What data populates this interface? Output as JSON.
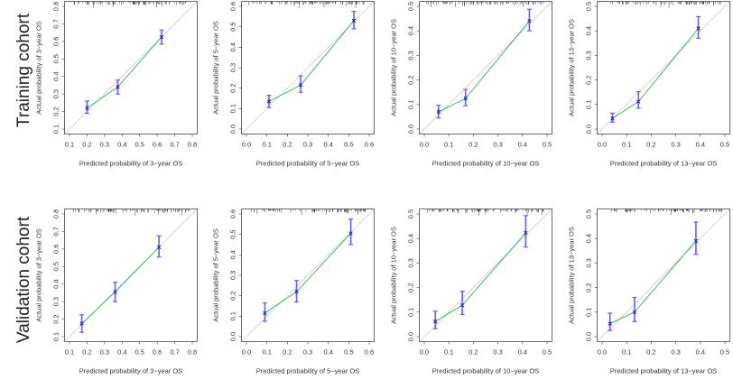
{
  "colors": {
    "points": "#2222cc",
    "errorbar": "#6a5cff",
    "calibration": "#3cb04a",
    "ideal": "#cccccc",
    "axis": "#444444"
  },
  "chart_data": {
    "type": "scatter",
    "rows": [
      "Training cohort",
      "Validation cohort"
    ],
    "panels": [
      {
        "row": 0,
        "title": "",
        "xlabel": "Predicted probability of 3−year OS",
        "ylabel": "Actual probability of 3−year OS",
        "xlim": [
          0.1,
          0.8
        ],
        "ylim": [
          0.1,
          0.8
        ],
        "ticks": [
          "0.1",
          "0.2",
          "0.3",
          "0.4",
          "0.5",
          "0.6",
          "0.7",
          "0.8"
        ],
        "points": [
          {
            "x": 0.2,
            "y": 0.22,
            "lo": 0.19,
            "hi": 0.26
          },
          {
            "x": 0.375,
            "y": 0.34,
            "lo": 0.3,
            "hi": 0.38
          },
          {
            "x": 0.625,
            "y": 0.625,
            "lo": 0.585,
            "hi": 0.665
          }
        ]
      },
      {
        "row": 0,
        "title": "",
        "xlabel": "Predicted probability of 5−year OS",
        "ylabel": "Actual probability of 5−year OS",
        "xlim": [
          0.0,
          0.6
        ],
        "ylim": [
          0.0,
          0.6
        ],
        "ticks": [
          "0.0",
          "0.1",
          "0.2",
          "0.3",
          "0.4",
          "0.5",
          "0.6"
        ],
        "points": [
          {
            "x": 0.11,
            "y": 0.135,
            "lo": 0.105,
            "hi": 0.165
          },
          {
            "x": 0.265,
            "y": 0.215,
            "lo": 0.18,
            "hi": 0.26
          },
          {
            "x": 0.525,
            "y": 0.53,
            "lo": 0.49,
            "hi": 0.575
          }
        ]
      },
      {
        "row": 0,
        "title": "",
        "xlabel": "Predicted probability of 10−year OS",
        "ylabel": "Actual probability of 10−year OS",
        "xlim": [
          0.0,
          0.5
        ],
        "ylim": [
          0.0,
          0.5
        ],
        "ticks": [
          "0.0",
          "0.1",
          "0.2",
          "0.3",
          "0.4",
          "0.5"
        ],
        "points": [
          {
            "x": 0.058,
            "y": 0.07,
            "lo": 0.045,
            "hi": 0.097
          },
          {
            "x": 0.168,
            "y": 0.125,
            "lo": 0.095,
            "hi": 0.162
          },
          {
            "x": 0.428,
            "y": 0.44,
            "lo": 0.4,
            "hi": 0.488
          }
        ]
      },
      {
        "row": 0,
        "title": "",
        "xlabel": "Predicted probability of 13−year OS",
        "ylabel": "Actual probability of 13−year OS",
        "xlim": [
          0.0,
          0.5
        ],
        "ylim": [
          0.0,
          0.5
        ],
        "ticks": [
          "0.0",
          "0.1",
          "0.2",
          "0.3",
          "0.4",
          "0.5"
        ],
        "points": [
          {
            "x": 0.042,
            "y": 0.043,
            "lo": 0.028,
            "hi": 0.065
          },
          {
            "x": 0.148,
            "y": 0.112,
            "lo": 0.085,
            "hi": 0.152
          },
          {
            "x": 0.392,
            "y": 0.41,
            "lo": 0.37,
            "hi": 0.458
          }
        ]
      },
      {
        "row": 1,
        "title": "",
        "xlabel": "Predicted probability of 3−year OS",
        "ylabel": "Actual probability of 3−year OS",
        "xlim": [
          0.1,
          0.8
        ],
        "ylim": [
          0.1,
          0.8
        ],
        "ticks": [
          "0.1",
          "0.2",
          "0.3",
          "0.4",
          "0.5",
          "0.6",
          "0.7",
          "0.8"
        ],
        "points": [
          {
            "x": 0.17,
            "y": 0.175,
            "lo": 0.125,
            "hi": 0.225
          },
          {
            "x": 0.36,
            "y": 0.355,
            "lo": 0.3,
            "hi": 0.41
          },
          {
            "x": 0.61,
            "y": 0.61,
            "lo": 0.555,
            "hi": 0.675
          }
        ]
      },
      {
        "row": 1,
        "title": "",
        "xlabel": "Predicted probability of 5−year OS",
        "ylabel": "Actual probability of 5−year OS",
        "xlim": [
          0.0,
          0.6
        ],
        "ylim": [
          0.0,
          0.6
        ],
        "ticks": [
          "0.0",
          "0.1",
          "0.2",
          "0.3",
          "0.4",
          "0.5",
          "0.6"
        ],
        "points": [
          {
            "x": 0.09,
            "y": 0.115,
            "lo": 0.075,
            "hi": 0.165
          },
          {
            "x": 0.245,
            "y": 0.22,
            "lo": 0.17,
            "hi": 0.275
          },
          {
            "x": 0.51,
            "y": 0.505,
            "lo": 0.45,
            "hi": 0.575
          }
        ]
      },
      {
        "row": 1,
        "title": "",
        "xlabel": "Predicted probability of 10−year OS",
        "ylabel": "Actual probability of 10−year OS",
        "xlim": [
          0.0,
          0.5
        ],
        "ylim": [
          0.0,
          0.5
        ],
        "ticks": [
          "0.0",
          "0.1",
          "0.2",
          "0.3",
          "0.4",
          "0.5"
        ],
        "points": [
          {
            "x": 0.045,
            "y": 0.062,
            "lo": 0.032,
            "hi": 0.104
          },
          {
            "x": 0.155,
            "y": 0.128,
            "lo": 0.09,
            "hi": 0.185
          },
          {
            "x": 0.413,
            "y": 0.423,
            "lo": 0.365,
            "hi": 0.493
          }
        ]
      },
      {
        "row": 1,
        "title": "",
        "xlabel": "Predicted probability of 13−year OS",
        "ylabel": "Actual probability of 13−year OS",
        "xlim": [
          0.0,
          0.5
        ],
        "ylim": [
          0.0,
          0.5
        ],
        "ticks": [
          "0.0",
          "0.1",
          "0.2",
          "0.3",
          "0.4",
          "0.5"
        ],
        "points": [
          {
            "x": 0.032,
            "y": 0.053,
            "lo": 0.025,
            "hi": 0.096
          },
          {
            "x": 0.132,
            "y": 0.1,
            "lo": 0.062,
            "hi": 0.16
          },
          {
            "x": 0.382,
            "y": 0.39,
            "lo": 0.335,
            "hi": 0.467
          }
        ]
      }
    ],
    "grid": false,
    "legend": "none"
  }
}
